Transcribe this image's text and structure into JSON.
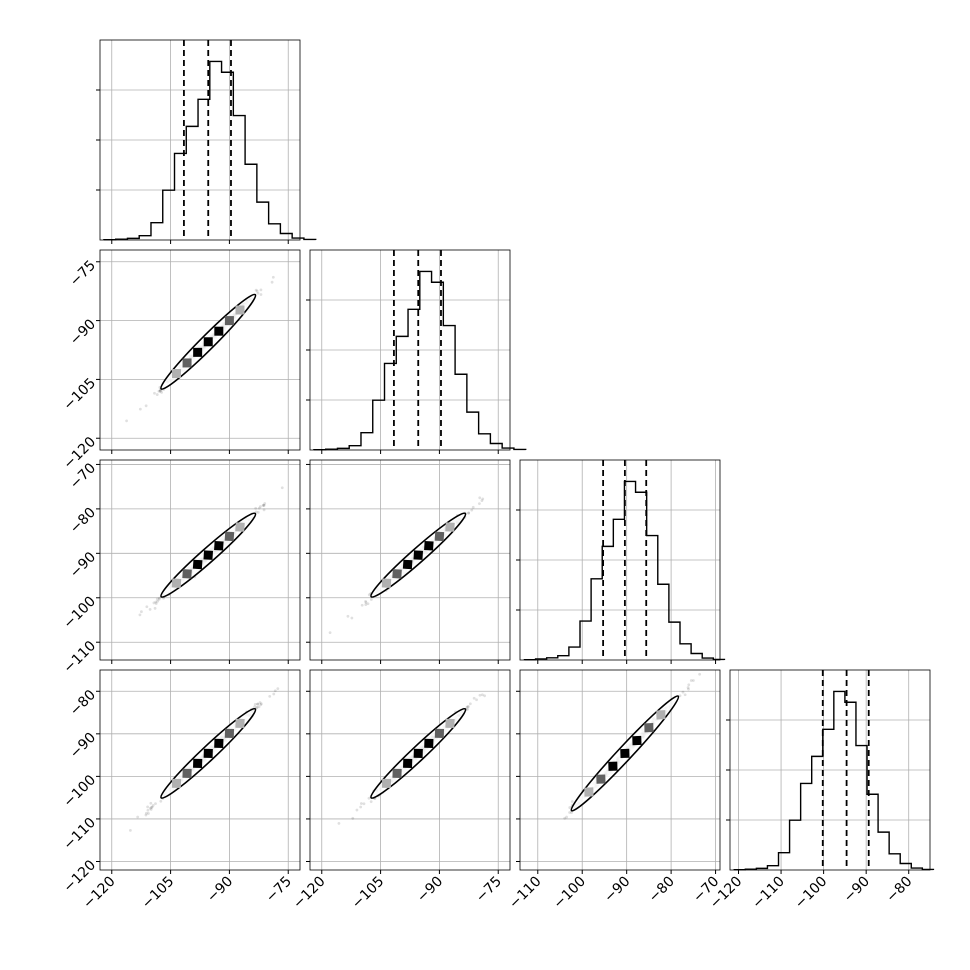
{
  "chart_data": {
    "type": "corner",
    "grid": true,
    "dimensions": 4,
    "marginals": [
      {
        "name": "",
        "range": [
          -123,
          -72
        ],
        "bin_start": -122,
        "bin_width": 3,
        "counts": [
          1,
          3,
          6,
          16,
          64,
          184,
          320,
          420,
          520,
          660,
          620,
          460,
          280,
          140,
          60,
          24,
          7,
          2
        ],
        "quantiles": [
          -101.6,
          -95.4,
          -89.6
        ]
      },
      {
        "name": "",
        "range": [
          -123,
          -72
        ],
        "bin_start": -122,
        "bin_width": 3,
        "counts": [
          1,
          3,
          6,
          16,
          64,
          184,
          320,
          420,
          520,
          660,
          620,
          460,
          280,
          140,
          60,
          24,
          7,
          2
        ],
        "quantiles": [
          -101.6,
          -95.4,
          -89.6
        ]
      },
      {
        "name": "",
        "range": [
          -114,
          -69
        ],
        "bin_start": -113,
        "bin_width": 2.5,
        "counts": [
          1,
          4,
          8,
          16,
          48,
          144,
          300,
          420,
          520,
          660,
          620,
          460,
          280,
          140,
          60,
          24,
          7,
          2
        ],
        "quantiles": [
          -95.3,
          -90.4,
          -85.6
        ]
      },
      {
        "name": "",
        "range": [
          -122,
          -75
        ],
        "bin_start": -121,
        "bin_width": 2.6,
        "counts": [
          1,
          3,
          6,
          16,
          64,
          184,
          320,
          420,
          520,
          660,
          620,
          460,
          280,
          140,
          60,
          24,
          7,
          2
        ],
        "quantiles": [
          -100.2,
          -94.6,
          -89.4
        ]
      }
    ],
    "axes": [
      {
        "range": [
          -123,
          -72
        ],
        "ticks": [
          -120,
          -105,
          -90,
          -75
        ],
        "tick_labels": [
          "−120",
          "−105",
          "−90",
          "−75"
        ]
      },
      {
        "range": [
          -123,
          -72
        ],
        "ticks": [
          -120,
          -105,
          -90,
          -75
        ],
        "tick_labels": [
          "−120",
          "−105",
          "−90",
          "−75"
        ]
      },
      {
        "range": [
          -114,
          -69
        ],
        "ticks": [
          -110,
          -100,
          -90,
          -80,
          -70
        ],
        "tick_labels": [
          "−110",
          "−100",
          "−90",
          "−80",
          "−70"
        ]
      },
      {
        "range": [
          -122,
          -75
        ],
        "ticks": [
          -120,
          -110,
          -100,
          -90,
          -80
        ],
        "tick_labels": [
          "−120",
          "−110",
          "−100",
          "−90",
          "−80"
        ]
      }
    ],
    "pairs": [
      {
        "x": 0,
        "y": 1,
        "mean_x": -95.4,
        "mean_y": -95.4,
        "slope": 1.0
      },
      {
        "x": 0,
        "y": 2,
        "mean_x": -95.4,
        "mean_y": -90.4,
        "slope": 0.78
      },
      {
        "x": 1,
        "y": 2,
        "mean_x": -95.4,
        "mean_y": -90.4,
        "slope": 0.78
      },
      {
        "x": 0,
        "y": 3,
        "mean_x": -95.4,
        "mean_y": -94.6,
        "slope": 0.87
      },
      {
        "x": 1,
        "y": 3,
        "mean_x": -95.4,
        "mean_y": -94.6,
        "slope": 0.87
      },
      {
        "x": 2,
        "y": 3,
        "mean_x": -90.4,
        "mean_y": -94.6,
        "slope": 1.12
      }
    ]
  }
}
